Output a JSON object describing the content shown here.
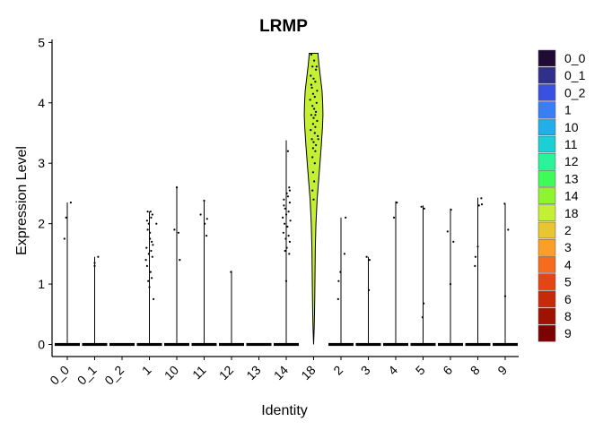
{
  "chart_data": {
    "type": "violin",
    "title": "LRMP",
    "xlabel": "Identity",
    "ylabel": "Expression Level",
    "ylim": [
      -0.2,
      5.05
    ],
    "yticks": [
      0,
      1,
      2,
      3,
      4,
      5
    ],
    "grid": false,
    "legend_position": "right",
    "categories": [
      "0_0",
      "0_1",
      "0_2",
      "1",
      "10",
      "11",
      "12",
      "13",
      "14",
      "18",
      "2",
      "3",
      "4",
      "5",
      "6",
      "8",
      "9"
    ],
    "colors": {
      "0_0": "#1f0b34",
      "0_1": "#30308a",
      "0_2": "#3a50e0",
      "1": "#3a7ef5",
      "10": "#22aee8",
      "11": "#1bcfd4",
      "12": "#2cf29a",
      "13": "#3efb59",
      "14": "#8ef42f",
      "18": "#c3ef34",
      "2": "#e7c632",
      "3": "#fb9e2a",
      "4": "#f56d1c",
      "5": "#e44613",
      "6": "#c72a08",
      "8": "#9e1204",
      "9": "#7a0403"
    },
    "series": [
      {
        "category": "0_0",
        "max": 2.35,
        "points": [
          [
            -0.25,
            1.75
          ],
          [
            -0.1,
            2.1
          ],
          [
            0.3,
            2.35
          ],
          [
            0.05,
            0
          ],
          [
            -0.2,
            0
          ],
          [
            0.25,
            0
          ]
        ]
      },
      {
        "category": "0_1",
        "max": 1.45,
        "points": [
          [
            0.0,
            1.35
          ],
          [
            0.3,
            1.45
          ],
          [
            0.0,
            1.3
          ],
          [
            -0.15,
            0
          ],
          [
            0.2,
            0
          ]
        ]
      },
      {
        "category": "0_2",
        "max": 0,
        "points": [
          [
            -0.2,
            0
          ],
          [
            0.0,
            0
          ],
          [
            0.2,
            0
          ]
        ]
      },
      {
        "category": "1",
        "max": 2.2,
        "points": [
          [
            -0.2,
            2.05
          ],
          [
            -0.05,
            2.0
          ],
          [
            0.1,
            2.2
          ],
          [
            0.25,
            2.15
          ],
          [
            -0.15,
            1.9
          ],
          [
            0.05,
            1.85
          ],
          [
            0.2,
            1.7
          ],
          [
            -0.25,
            1.6
          ],
          [
            0.15,
            1.55
          ],
          [
            -0.05,
            1.5
          ],
          [
            0.3,
            1.65
          ],
          [
            -0.2,
            1.3
          ],
          [
            0.1,
            1.2
          ],
          [
            -0.1,
            1.05
          ],
          [
            0.0,
            0.95
          ],
          [
            0.35,
            0.75
          ],
          [
            0.25,
            1.45
          ],
          [
            -0.3,
            1.4
          ],
          [
            0.15,
            2.1
          ],
          [
            -0.15,
            2.2
          ],
          [
            0.05,
            1.75
          ],
          [
            0.2,
            1.1
          ],
          [
            0.6,
            2.0
          ],
          [
            -0.25,
            0
          ],
          [
            0.25,
            0
          ]
        ]
      },
      {
        "category": "10",
        "max": 2.62,
        "points": [
          [
            0.0,
            2.6
          ],
          [
            -0.2,
            1.9
          ],
          [
            0.15,
            1.85
          ],
          [
            0.25,
            1.4
          ],
          [
            -0.2,
            0
          ],
          [
            0.2,
            0
          ]
        ]
      },
      {
        "category": "11",
        "max": 2.38,
        "points": [
          [
            -0.3,
            2.15
          ],
          [
            0.0,
            2.38
          ],
          [
            0.05,
            2.0
          ],
          [
            0.25,
            2.08
          ],
          [
            0.2,
            1.8
          ],
          [
            -0.2,
            0
          ],
          [
            0.2,
            0
          ]
        ]
      },
      {
        "category": "12",
        "max": 1.22,
        "points": [
          [
            -0.05,
            1.2
          ],
          [
            -0.2,
            0
          ],
          [
            0.2,
            0
          ]
        ]
      },
      {
        "category": "13",
        "max": 0,
        "points": [
          [
            -0.2,
            0
          ],
          [
            0.0,
            0
          ],
          [
            0.2,
            0
          ]
        ]
      },
      {
        "category": "14",
        "max": 3.38,
        "points": [
          [
            0.15,
            3.2
          ],
          [
            0.25,
            2.6
          ],
          [
            -0.2,
            2.4
          ],
          [
            0.05,
            2.5
          ],
          [
            0.3,
            2.35
          ],
          [
            -0.1,
            2.25
          ],
          [
            0.2,
            2.2
          ],
          [
            -0.3,
            2.1
          ],
          [
            0.0,
            2.15
          ],
          [
            0.35,
            2.05
          ],
          [
            -0.15,
            2.0
          ],
          [
            0.1,
            1.95
          ],
          [
            -0.25,
            1.85
          ],
          [
            0.2,
            1.8
          ],
          [
            0.3,
            1.7
          ],
          [
            0.05,
            1.6
          ],
          [
            -0.1,
            1.55
          ],
          [
            0.25,
            1.5
          ],
          [
            0.0,
            1.05
          ],
          [
            -0.2,
            2.3
          ],
          [
            0.15,
            2.45
          ],
          [
            -0.05,
            1.75
          ],
          [
            0.3,
            2.55
          ],
          [
            -0.25,
            0
          ],
          [
            0.25,
            0
          ]
        ]
      },
      {
        "category": "18",
        "max": 4.82,
        "points": [
          [
            -0.2,
            4.8
          ],
          [
            0.05,
            4.7
          ],
          [
            -0.1,
            4.6
          ],
          [
            0.2,
            4.55
          ],
          [
            -0.25,
            4.45
          ],
          [
            0.0,
            4.4
          ],
          [
            0.15,
            4.35
          ],
          [
            -0.15,
            4.25
          ],
          [
            0.3,
            4.2
          ],
          [
            -0.05,
            4.15
          ],
          [
            0.1,
            4.1
          ],
          [
            -0.3,
            4.05
          ],
          [
            0.25,
            4.0
          ],
          [
            -0.1,
            3.95
          ],
          [
            0.05,
            3.9
          ],
          [
            0.2,
            3.85
          ],
          [
            -0.2,
            3.8
          ],
          [
            0.0,
            3.75
          ],
          [
            0.3,
            3.7
          ],
          [
            -0.05,
            3.65
          ],
          [
            0.15,
            3.6
          ],
          [
            -0.25,
            3.55
          ],
          [
            0.1,
            3.5
          ],
          [
            0.35,
            3.45
          ],
          [
            -0.15,
            3.4
          ],
          [
            0.0,
            3.35
          ],
          [
            0.2,
            3.3
          ],
          [
            -0.05,
            3.25
          ],
          [
            0.15,
            3.2
          ],
          [
            -0.1,
            3.1
          ],
          [
            0.1,
            3.0
          ],
          [
            -0.05,
            2.85
          ],
          [
            0.05,
            2.7
          ],
          [
            -0.1,
            2.55
          ],
          [
            0.0,
            2.4
          ],
          [
            0.15,
            3.8
          ],
          [
            -0.2,
            4.3
          ],
          [
            0.25,
            4.6
          ],
          [
            0.4,
            3.4
          ]
        ]
      },
      {
        "category": "2",
        "max": 2.1,
        "points": [
          [
            -0.2,
            1.05
          ],
          [
            -0.05,
            1.2
          ],
          [
            0.3,
            1.5
          ],
          [
            -0.25,
            0.75
          ],
          [
            0.4,
            2.1
          ],
          [
            -0.2,
            0
          ],
          [
            0.2,
            0
          ]
        ]
      },
      {
        "category": "3",
        "max": 1.45,
        "points": [
          [
            -0.15,
            1.45
          ],
          [
            0.1,
            1.4
          ],
          [
            0.05,
            0.9
          ],
          [
            -0.2,
            0
          ],
          [
            0.2,
            0
          ]
        ]
      },
      {
        "category": "4",
        "max": 2.37,
        "points": [
          [
            -0.15,
            2.1
          ],
          [
            0.1,
            2.35
          ],
          [
            -0.2,
            0
          ],
          [
            0.2,
            0
          ]
        ]
      },
      {
        "category": "5",
        "max": 2.3,
        "points": [
          [
            -0.15,
            2.28
          ],
          [
            0.1,
            2.25
          ],
          [
            0.05,
            0.68
          ],
          [
            -0.05,
            0.45
          ],
          [
            -0.2,
            0
          ],
          [
            0.2,
            0
          ]
        ]
      },
      {
        "category": "6",
        "max": 2.25,
        "points": [
          [
            -0.25,
            1.87
          ],
          [
            0.05,
            2.23
          ],
          [
            0.25,
            1.7
          ],
          [
            0.0,
            1.0
          ],
          [
            -0.2,
            0
          ],
          [
            0.2,
            0
          ]
        ]
      },
      {
        "category": "8",
        "max": 2.43,
        "points": [
          [
            -0.2,
            1.45
          ],
          [
            -0.25,
            1.3
          ],
          [
            0.0,
            1.62
          ],
          [
            0.1,
            2.3
          ],
          [
            0.3,
            2.42
          ],
          [
            0.35,
            2.32
          ],
          [
            -0.2,
            0
          ],
          [
            0.2,
            0
          ]
        ]
      },
      {
        "category": "9",
        "max": 2.33,
        "points": [
          [
            -0.05,
            2.33
          ],
          [
            0.25,
            1.9
          ],
          [
            0.0,
            0.8
          ],
          [
            -0.2,
            0
          ],
          [
            0.2,
            0
          ]
        ]
      }
    ]
  }
}
